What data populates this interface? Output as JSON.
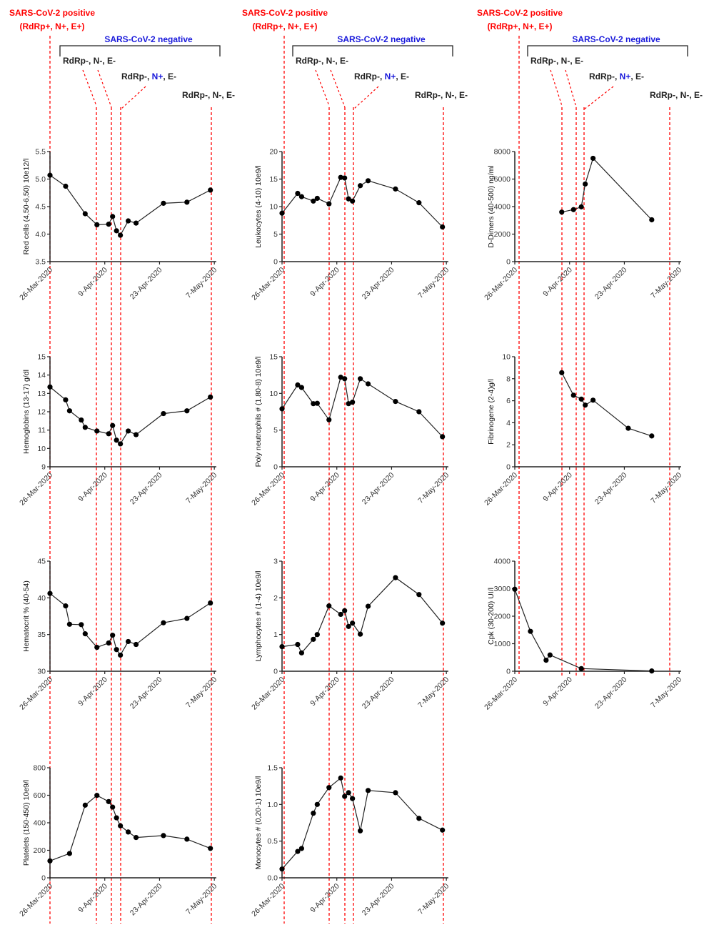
{
  "annotations": {
    "positive_line1": "SARS-CoV-2 positive",
    "positive_line2": "(RdRp+, N+, E+)",
    "negative": "SARS-CoV-2 negative",
    "test1": "RdRp-, N-, E-",
    "test2_prefix": "RdRp-, ",
    "test2_n": "N+",
    "test2_suffix": ", E-",
    "test3": "RdRp-, N-, E-",
    "colors": {
      "positive": "#ff0000",
      "negative": "#1a1adb",
      "text": "#222222",
      "event_line": "#ff0000",
      "series": "#222222"
    }
  },
  "chart_data": {
    "type": "line",
    "x_unit": "days since 26-Mar-2020",
    "xlim": [
      0,
      42.5
    ],
    "xticks": [
      {
        "day": 0,
        "label": "26-Mar-2020"
      },
      {
        "day": 14,
        "label": "9-Apr-2020"
      },
      {
        "day": 28,
        "label": "23-Apr-2020"
      },
      {
        "day": 42,
        "label": "7-May-2020"
      }
    ],
    "panels": [
      {
        "id": "red-cells",
        "ylabel": "Red cells (4,50-6,50) 10e12/l",
        "ylim": [
          3.5,
          5.5
        ],
        "yticks": [
          "3.5",
          "4.0",
          "4.5",
          "5.0",
          "5.5"
        ],
        "x": [
          0,
          4,
          9,
          12,
          15,
          16,
          17,
          18,
          20,
          22,
          29,
          35,
          41
        ],
        "y": [
          5.07,
          4.87,
          4.37,
          4.17,
          4.18,
          4.32,
          4.06,
          3.98,
          4.24,
          4.2,
          4.56,
          4.58,
          4.8
        ]
      },
      {
        "id": "leukocytes",
        "ylabel": "Leukocytes (4-10) 10e9/l",
        "ylim": [
          0,
          20
        ],
        "yticks": [
          "0",
          "5",
          "10",
          "15",
          "20"
        ],
        "x": [
          0,
          4,
          5,
          8,
          9,
          12,
          15,
          16,
          17,
          18,
          20,
          22,
          29,
          35,
          41
        ],
        "y": [
          8.8,
          12.4,
          11.8,
          11.0,
          11.5,
          10.5,
          15.3,
          15.2,
          11.4,
          11.0,
          13.8,
          14.7,
          13.2,
          10.7,
          6.3
        ]
      },
      {
        "id": "d-dimers",
        "ylabel": "D-Dimers (40-500) ng/ml",
        "ylim": [
          0,
          8000
        ],
        "yticks": [
          "0",
          "2000",
          "4000",
          "6000",
          "8000"
        ],
        "x": [
          12,
          15,
          17,
          18,
          20,
          35
        ],
        "y": [
          3600,
          3780,
          3980,
          5640,
          7510,
          3040
        ]
      },
      {
        "id": "hemoglobins",
        "ylabel": "Hemoglobins (13-17) g/dl",
        "ylim": [
          9,
          15
        ],
        "yticks": [
          "9",
          "10",
          "11",
          "12",
          "13",
          "14",
          "15"
        ],
        "x": [
          0,
          4,
          5,
          8,
          9,
          12,
          15,
          16,
          17,
          18,
          20,
          22,
          29,
          35,
          41
        ],
        "y": [
          13.35,
          12.65,
          12.05,
          11.55,
          11.15,
          10.95,
          10.8,
          11.25,
          10.45,
          10.25,
          10.95,
          10.75,
          11.9,
          12.05,
          12.8
        ]
      },
      {
        "id": "poly-neutrophils",
        "ylabel": "Poly neutrophils # (1,80-8) 10e9/l",
        "ylim": [
          0,
          15
        ],
        "yticks": [
          "0",
          "5",
          "10",
          "15"
        ],
        "x": [
          0,
          4,
          5,
          8,
          9,
          12,
          15,
          16,
          17,
          18,
          20,
          22,
          29,
          35,
          41
        ],
        "y": [
          7.9,
          11.15,
          10.8,
          8.6,
          8.65,
          6.4,
          12.2,
          12.0,
          8.6,
          8.8,
          12.0,
          11.3,
          8.9,
          7.5,
          4.1
        ]
      },
      {
        "id": "fibrinogene",
        "ylabel": "Fibrinogene (2-4)g/l",
        "ylim": [
          0,
          10
        ],
        "yticks": [
          "0",
          "2",
          "4",
          "6",
          "8",
          "10"
        ],
        "x": [
          12,
          15,
          17,
          18,
          20,
          29,
          35
        ],
        "y": [
          8.55,
          6.5,
          6.15,
          5.6,
          6.05,
          3.5,
          2.8
        ]
      },
      {
        "id": "hematocrit",
        "ylabel": "Hematocrit % (40-54)",
        "ylim": [
          30,
          45
        ],
        "yticks": [
          "30",
          "35",
          "40",
          "45"
        ],
        "x": [
          0,
          4,
          5,
          8,
          9,
          12,
          15,
          16,
          17,
          18,
          20,
          22,
          29,
          35,
          41
        ],
        "y": [
          40.6,
          38.9,
          36.4,
          36.35,
          35.1,
          33.25,
          33.85,
          34.9,
          32.95,
          32.2,
          34.05,
          33.65,
          36.6,
          37.2,
          39.3
        ]
      },
      {
        "id": "lymphocytes",
        "ylabel": "Lymphocytes # (1-4) 10e9/l",
        "ylim": [
          0,
          3
        ],
        "yticks": [
          "0",
          "1",
          "2",
          "3"
        ],
        "x": [
          0,
          4,
          5,
          8,
          9,
          12,
          15,
          16,
          17,
          18,
          20,
          22,
          29,
          35,
          41
        ],
        "y": [
          0.67,
          0.73,
          0.5,
          0.87,
          1.0,
          1.78,
          1.55,
          1.65,
          1.22,
          1.31,
          1.01,
          1.77,
          2.55,
          2.09,
          1.31
        ]
      },
      {
        "id": "cpk",
        "ylabel": "Cpk (30-200) UI/l",
        "ylim": [
          0,
          4000
        ],
        "yticks": [
          "0",
          "1000",
          "2000",
          "3000",
          "4000"
        ],
        "x": [
          0,
          4,
          8,
          9,
          17,
          35
        ],
        "y": [
          2980,
          1450,
          400,
          590,
          95,
          10
        ]
      },
      {
        "id": "platelets",
        "ylabel": "Platelets (150-450) 10e9/l",
        "ylim": [
          0,
          800
        ],
        "yticks": [
          "0",
          "200",
          "400",
          "600",
          "800"
        ],
        "x": [
          0,
          5,
          9,
          12,
          15,
          16,
          17,
          18,
          20,
          22,
          29,
          35,
          41
        ],
        "y": [
          123,
          177,
          528,
          599,
          554,
          514,
          436,
          378,
          333,
          293,
          307,
          281,
          214
        ]
      },
      {
        "id": "monocytes",
        "ylabel": "Monocytes # (0,20-1) 10e9/l",
        "ylim": [
          0,
          1.5
        ],
        "yticks": [
          "0.0",
          "0.5",
          "1.0",
          "1.5"
        ],
        "x": [
          0,
          4,
          5,
          8,
          9,
          12,
          15,
          16,
          17,
          18,
          20,
          22,
          29,
          35,
          41
        ],
        "y": [
          0.12,
          0.36,
          0.4,
          0.88,
          1.0,
          1.23,
          1.36,
          1.11,
          1.16,
          1.08,
          0.64,
          1.19,
          1.16,
          0.81,
          0.65
        ]
      }
    ]
  }
}
